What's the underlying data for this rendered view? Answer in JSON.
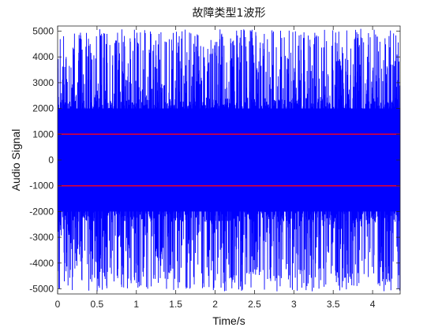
{
  "chart_data": {
    "type": "line",
    "title": "故障类型1波形",
    "xlabel": "Time/s",
    "ylabel": "Audio Signal",
    "xlim": [
      0,
      4.35
    ],
    "ylim": [
      -5200,
      5200
    ],
    "xticks": [
      0,
      0.5,
      1,
      1.5,
      2,
      2.5,
      3,
      3.5,
      4
    ],
    "xtick_labels": [
      "0",
      "0.5",
      "1",
      "1.5",
      "2",
      "2.5",
      "3",
      "3.5",
      "4"
    ],
    "yticks": [
      -5000,
      -4000,
      -3000,
      -2000,
      -1000,
      0,
      1000,
      2000,
      3000,
      4000,
      5000
    ],
    "ytick_labels": [
      "-5000",
      "-4000",
      "-3000",
      "-2000",
      "-1000",
      "0",
      "1000",
      "2000",
      "3000",
      "4000",
      "5000"
    ],
    "grid": false,
    "series": [
      {
        "type": "line",
        "color": "#0000ff",
        "x_range": [
          0,
          4.35
        ],
        "dense_band": [
          -2000,
          2000
        ],
        "peak_range": [
          -5100,
          5100
        ]
      }
    ],
    "threshold_lines": [
      {
        "y": 1000,
        "color": "#e8002a"
      },
      {
        "y": -1000,
        "color": "#e8002a"
      }
    ]
  }
}
